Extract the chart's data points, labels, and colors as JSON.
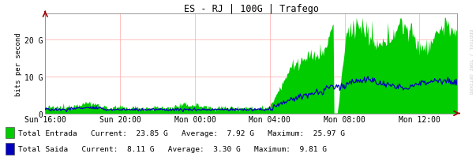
{
  "title": "ES - RJ | 100G | Trafego",
  "ylabel": "bits per second",
  "bg_color": "#FFFFFF",
  "plot_bg_color": "#FFFFFF",
  "grid_color": "#FFAAAA",
  "entrada_color": "#00CC00",
  "saida_color": "#0000BB",
  "arrow_color": "#990000",
  "watermark": "RRDTOOL / TOBI OETIKER",
  "y_ticks": [
    0,
    10000000000,
    20000000000
  ],
  "y_tick_labels": [
    "0",
    "10 G",
    "20 G"
  ],
  "ylim_max": 27000000000,
  "x_tick_labels": [
    "Sun 16:00",
    "Sun 20:00",
    "Mon 00:00",
    "Mon 04:00",
    "Mon 08:00",
    "Mon 12:00"
  ],
  "legend": [
    {
      "label": "Total Entrada",
      "current": "23.85 G",
      "average": "7.92 G",
      "maximum": "25.97 G",
      "color": "#00CC00"
    },
    {
      "label": "Total Saida",
      "current": "8.11 G",
      "average": "3.30 G",
      "maximum": "9.81 G",
      "color": "#0000BB"
    }
  ]
}
